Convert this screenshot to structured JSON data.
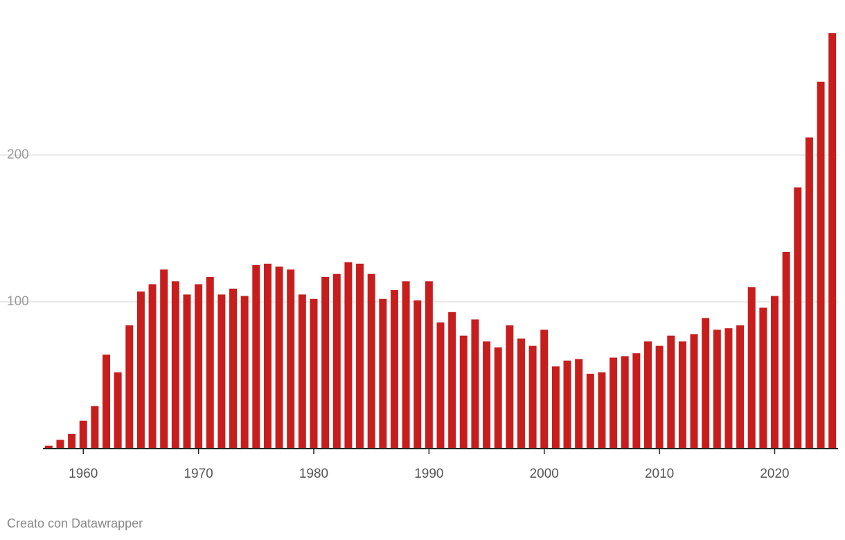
{
  "chart_data": {
    "type": "bar",
    "x": [
      1957,
      1958,
      1959,
      1960,
      1961,
      1962,
      1963,
      1964,
      1965,
      1966,
      1967,
      1968,
      1969,
      1970,
      1971,
      1972,
      1973,
      1974,
      1975,
      1976,
      1977,
      1978,
      1979,
      1980,
      1981,
      1982,
      1983,
      1984,
      1985,
      1986,
      1987,
      1988,
      1989,
      1990,
      1991,
      1992,
      1993,
      1994,
      1995,
      1996,
      1997,
      1998,
      1999,
      2000,
      2001,
      2002,
      2003,
      2004,
      2005,
      2006,
      2007,
      2008,
      2009,
      2010,
      2011,
      2012,
      2013,
      2014,
      2015,
      2016,
      2017,
      2018,
      2019,
      2020,
      2021,
      2022,
      2023,
      2024,
      2025
    ],
    "values": [
      2,
      6,
      10,
      19,
      29,
      64,
      52,
      84,
      107,
      112,
      122,
      114,
      105,
      112,
      117,
      105,
      109,
      104,
      125,
      126,
      124,
      122,
      105,
      102,
      117,
      119,
      127,
      126,
      119,
      102,
      108,
      114,
      101,
      114,
      86,
      93,
      77,
      88,
      73,
      69,
      84,
      75,
      70,
      81,
      56,
      60,
      61,
      51,
      52,
      62,
      63,
      65,
      73,
      70,
      77,
      73,
      78,
      89,
      81,
      82,
      84,
      110,
      96,
      104,
      134,
      178,
      212,
      250,
      283
    ],
    "color": "#c71e1d",
    "xlim": [
      1956.5,
      2025.5
    ],
    "xticks": [
      1960,
      1970,
      1980,
      1990,
      2000,
      2010,
      2020
    ],
    "ylim": [
      0,
      283
    ],
    "yticks": [
      100,
      200
    ],
    "grid": true,
    "credit": "Creato con Datawrapper"
  }
}
